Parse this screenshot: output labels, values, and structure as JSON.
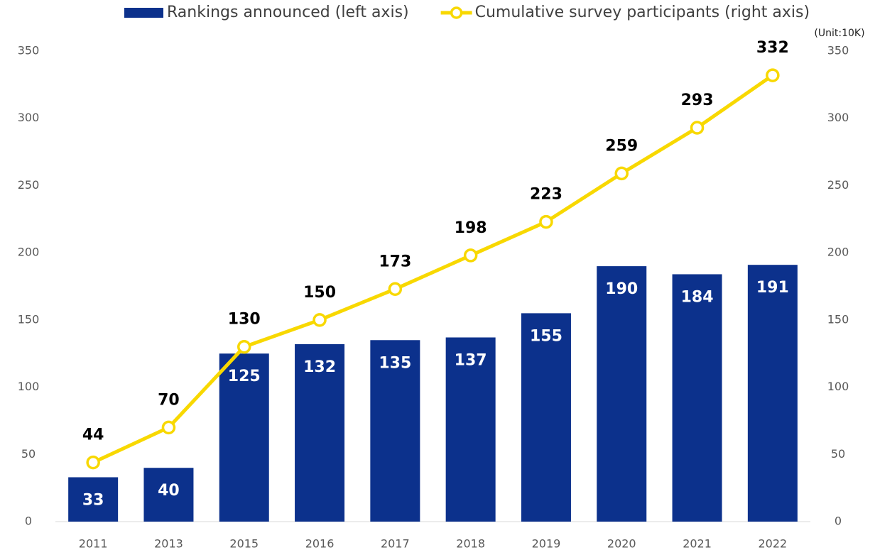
{
  "chart_data": {
    "type": "bar",
    "unit_note": "(Unit:10K)",
    "categories": [
      "2011",
      "2013",
      "2015",
      "2016",
      "2017",
      "2018",
      "2019",
      "2020",
      "2021",
      "2022"
    ],
    "series": [
      {
        "name": "Rankings announced (left axis)",
        "type": "bar",
        "color": "#0c318c",
        "values": [
          33,
          40,
          125,
          132,
          135,
          137,
          155,
          190,
          184,
          191
        ]
      },
      {
        "name": "Cumulative survey participants (right axis)",
        "type": "line",
        "axis": "y2",
        "color": "#f8d800",
        "values": [
          44,
          70,
          130,
          150,
          173,
          198,
          223,
          259,
          293,
          332
        ]
      }
    ],
    "ylim": [
      0,
      350
    ],
    "yticks": [
      0,
      50,
      100,
      150,
      200,
      250,
      300,
      350
    ],
    "y2lim": [
      0,
      350
    ],
    "y2ticks": [
      0,
      50,
      100,
      150,
      200,
      250,
      300,
      350
    ],
    "grid": false,
    "legend": "top"
  }
}
